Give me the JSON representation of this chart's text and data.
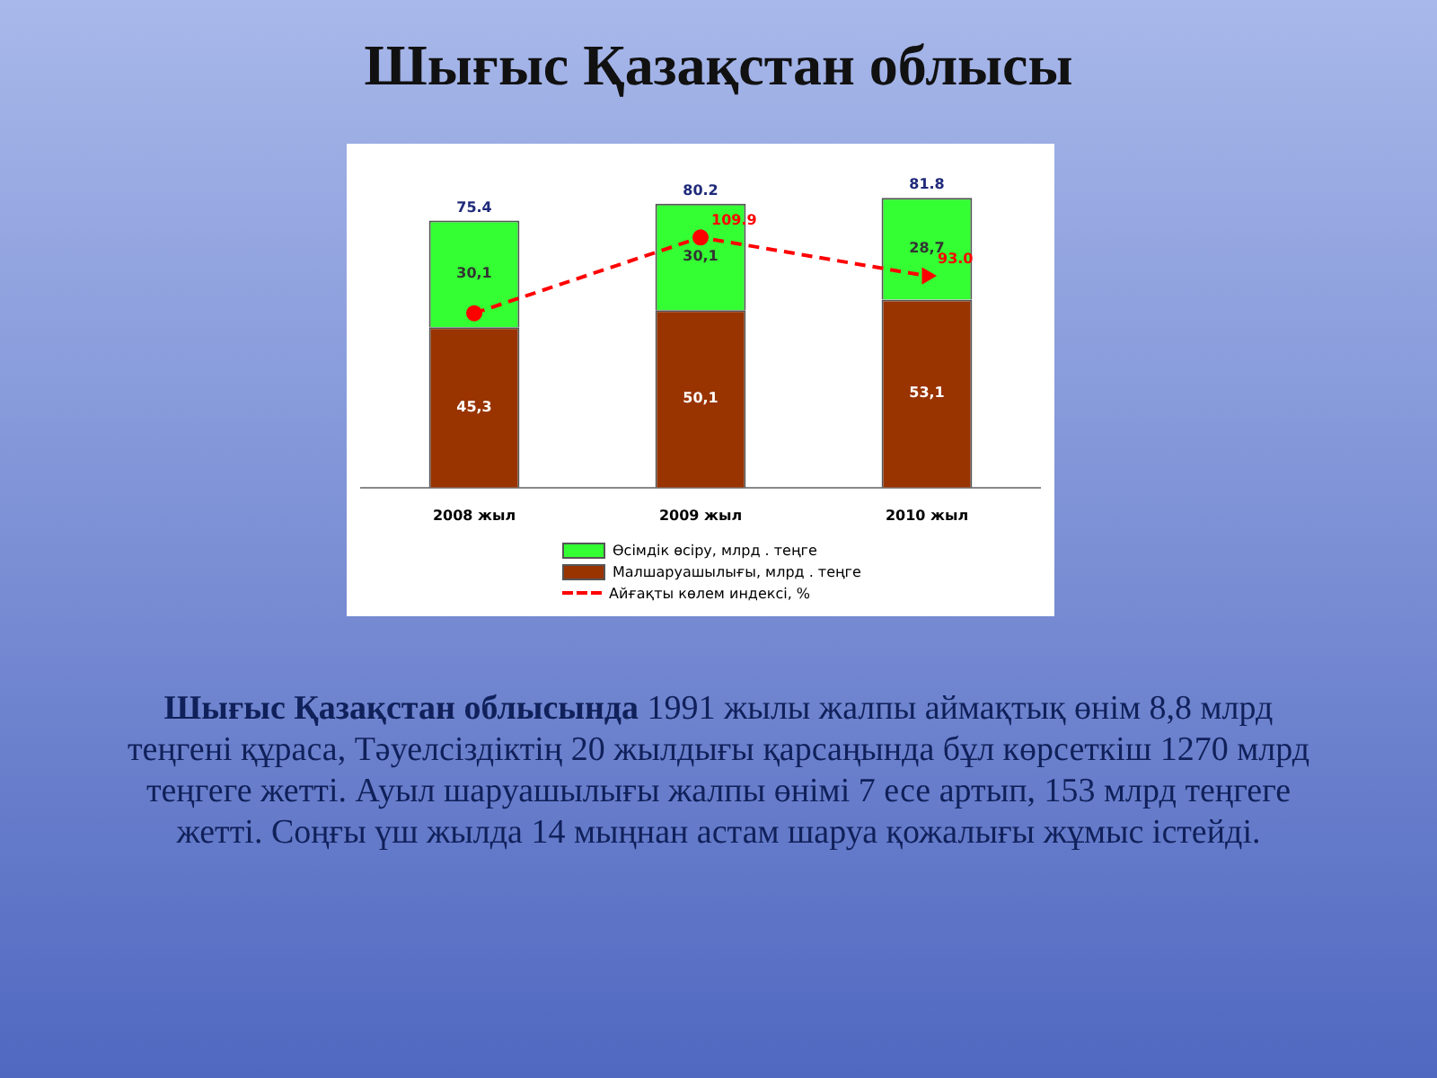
{
  "chart_data": {
    "type": "bar",
    "title": "Шығыс Қазақстан облысы",
    "categories": [
      "2008 жыл",
      "2009 жыл",
      "2010 жыл"
    ],
    "stacked": true,
    "tick_labels": "x",
    "grid": false,
    "legend": "bottom",
    "series": [
      {
        "name": "Малшаруашылығы, млрд . теңге",
        "color": "#993300",
        "values": [
          45.3,
          50.1,
          53.1
        ],
        "value_labels": [
          "45,3",
          "50,1",
          "53,1"
        ]
      },
      {
        "name": "Өсімдік өсіру, млрд . теңге",
        "color": "#33ff33",
        "values": [
          30.1,
          30.1,
          28.7
        ],
        "value_labels": [
          "30,1",
          "30,1",
          "28,7"
        ]
      },
      {
        "name": "Айғақты көлем индексі, %",
        "type": "line",
        "axis": "y2",
        "color": "#ff0000",
        "values": [
          76.6,
          109.9,
          93.0
        ],
        "value_labels": [
          null,
          "109.9",
          "93.0"
        ],
        "line_style": "dashed",
        "marker": "circle"
      }
    ],
    "totals": [
      "75.4",
      "80.2",
      "81.8"
    ],
    "annotations": [
      "Шығыс Қазақстан облысында",
      "1991 жылы жалпы аймақтық өнім 8,8 млрд теңгені құраса, Тәуелсіздіктің 20 жылдығы қарсаңында бұл көрсеткіш 1270 млрд теңгеге жетті.  Ауыл шаруашылығы жалпы өнімі 7 есе артып, 153 млрд  теңгеге жетті. Соңғы үш жылда 14 мыңнан астам шаруа қожалығы жұмыс істейді."
    ]
  }
}
